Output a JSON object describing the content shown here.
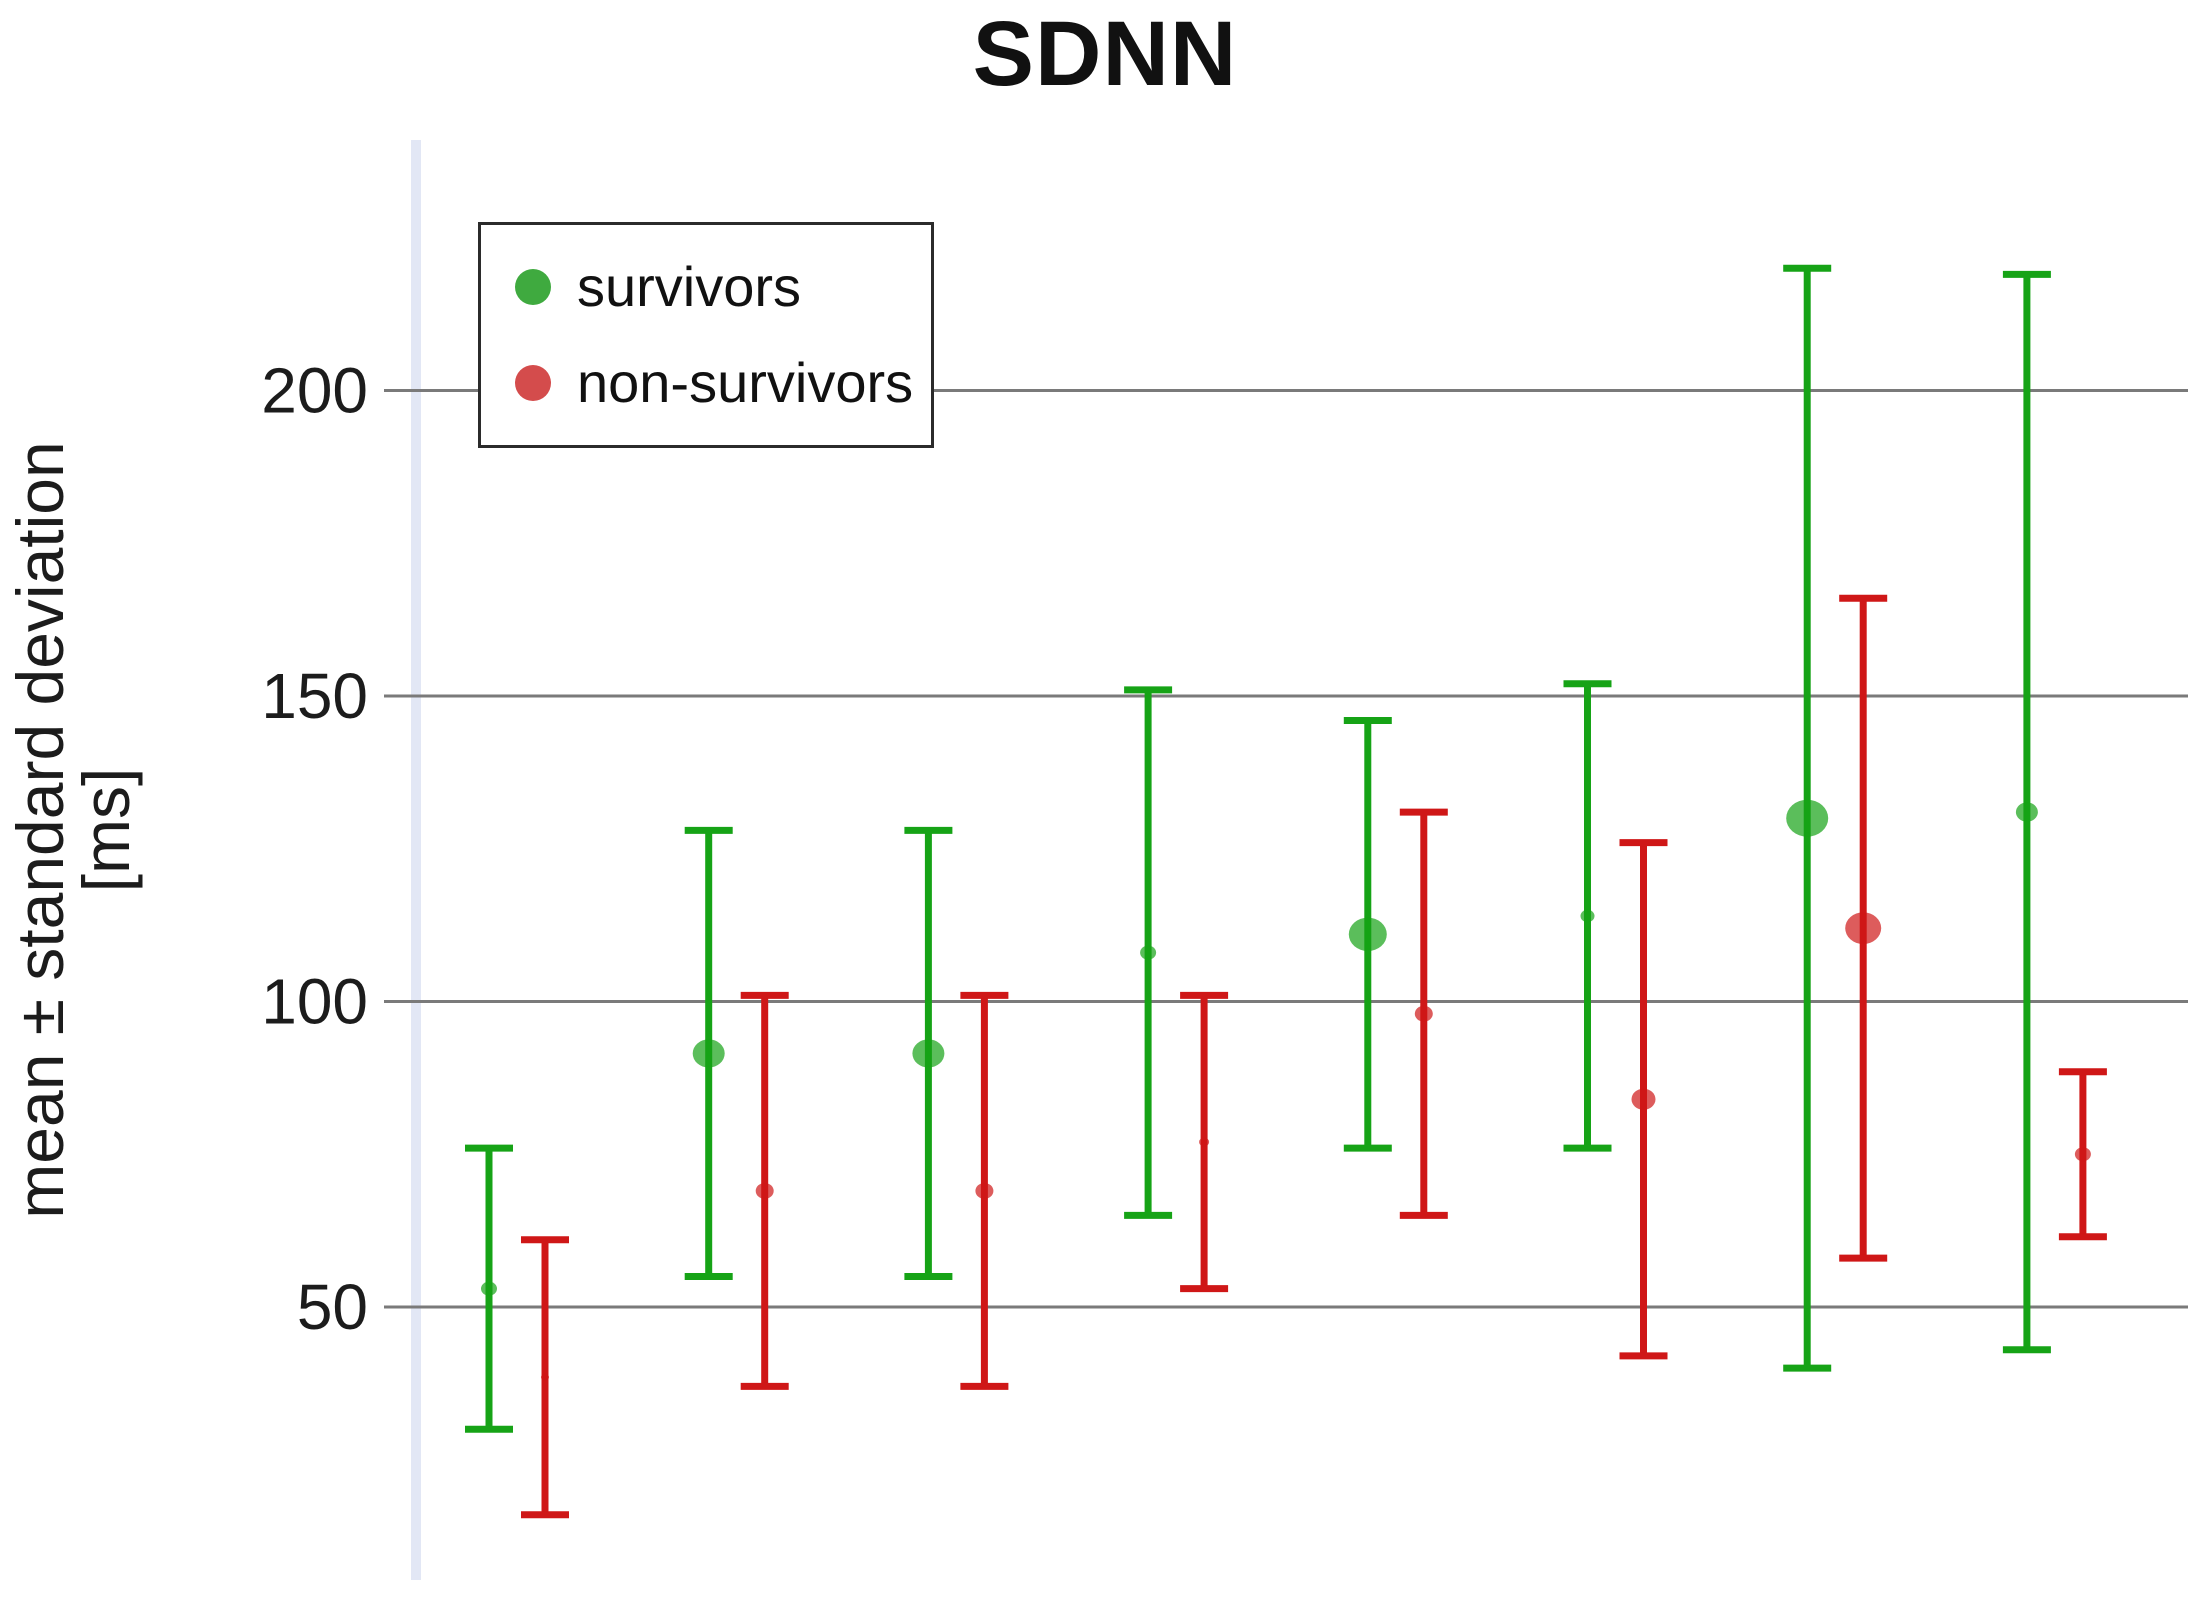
{
  "chart_data": {
    "type": "errorbar",
    "title": "SDNN",
    "ylabel_line1": "mean ± standard deviation",
    "ylabel_line2": "[ms]",
    "y_ticks": [
      200,
      150,
      100,
      50
    ],
    "ylim": [
      0,
      240
    ],
    "grid": true,
    "x_tick_labels": [],
    "legend_position": "top-left-inside",
    "legend": [
      {
        "label": "survivors",
        "color": "#16a316",
        "swatch_color": "#3faa3f"
      },
      {
        "label": "non-survivors",
        "color": "#cf1717",
        "swatch_color": "#d44c4c"
      }
    ],
    "groups": [
      {
        "survivors": {
          "mean": 53,
          "sd": 23,
          "upper": 76,
          "lower": 30,
          "marker_radius": 8
        },
        "non_survivors": {
          "mean": 38.5,
          "sd": 22.5,
          "upper": 61,
          "lower": 16,
          "marker_radius": 4
        }
      },
      {
        "survivors": {
          "mean": 91.5,
          "sd": 36.5,
          "upper": 128,
          "lower": 55,
          "marker_radius": 16
        },
        "non_survivors": {
          "mean": 69,
          "sd": 32,
          "upper": 101,
          "lower": 37,
          "marker_radius": 9
        }
      },
      {
        "survivors": {
          "mean": 91.5,
          "sd": 36.5,
          "upper": 128,
          "lower": 55,
          "marker_radius": 16
        },
        "non_survivors": {
          "mean": 69,
          "sd": 32,
          "upper": 101,
          "lower": 37,
          "marker_radius": 9
        }
      },
      {
        "survivors": {
          "mean": 108,
          "sd": 43,
          "upper": 151,
          "lower": 65,
          "marker_radius": 8
        },
        "non_survivors": {
          "mean": 77,
          "sd": 24,
          "upper": 101,
          "lower": 53,
          "marker_radius": 5
        }
      },
      {
        "survivors": {
          "mean": 111,
          "sd": 35,
          "upper": 146,
          "lower": 76,
          "marker_radius": 19
        },
        "non_survivors": {
          "mean": 98,
          "sd": 33,
          "upper": 131,
          "lower": 65,
          "marker_radius": 9
        }
      },
      {
        "survivors": {
          "mean": 114,
          "sd": 38,
          "upper": 152,
          "lower": 76,
          "marker_radius": 7
        },
        "non_survivors": {
          "mean": 84,
          "sd": 42,
          "upper": 126,
          "lower": 42,
          "marker_radius": 12
        }
      },
      {
        "survivors": {
          "mean": 130,
          "sd": 90,
          "upper": 220,
          "lower": 40,
          "marker_radius": 21
        },
        "non_survivors": {
          "mean": 112,
          "sd": 54,
          "upper": 166,
          "lower": 58,
          "marker_radius": 18
        }
      },
      {
        "survivors": {
          "mean": 131,
          "sd": 88,
          "upper": 219,
          "lower": 43,
          "marker_radius": 11
        },
        "non_survivors": {
          "mean": 75,
          "sd": 13.5,
          "upper": 89,
          "lower": 62,
          "marker_radius": 8
        }
      }
    ],
    "colors": {
      "gridline": "#7a7a7a",
      "axis_band": "#e2e7f5",
      "tick_text": "#1c1c1c",
      "title_text": "#111111"
    }
  }
}
